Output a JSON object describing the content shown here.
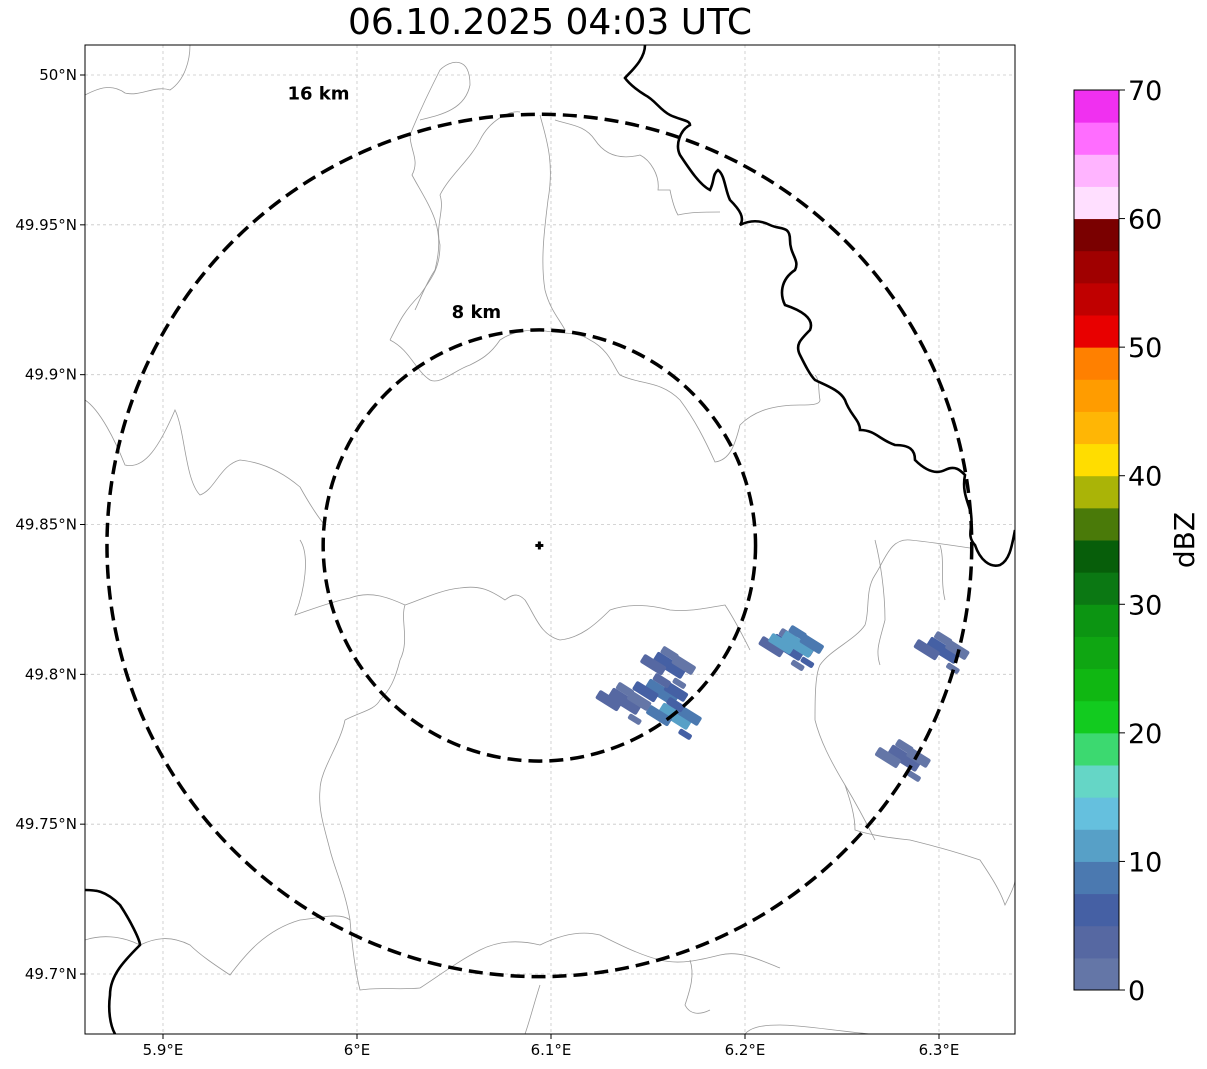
{
  "title": "06.10.2025 04:03 UTC",
  "map": {
    "lon_range": [
      5.86,
      6.34
    ],
    "lat_range": [
      49.68,
      50.01
    ],
    "lon_ticks": [
      {
        "value": 5.9,
        "label": "5.9°E"
      },
      {
        "value": 6.0,
        "label": "6°E"
      },
      {
        "value": 6.1,
        "label": "6.1°E"
      },
      {
        "value": 6.2,
        "label": "6.2°E"
      },
      {
        "value": 6.3,
        "label": "6.3°E"
      }
    ],
    "lat_ticks": [
      {
        "value": 49.7,
        "label": "49.7°N"
      },
      {
        "value": 49.75,
        "label": "49.75°N"
      },
      {
        "value": 49.8,
        "label": "49.8°N"
      },
      {
        "value": 49.85,
        "label": "49.85°N"
      },
      {
        "value": 49.9,
        "label": "49.9°N"
      },
      {
        "value": 49.95,
        "label": "49.95°N"
      },
      {
        "value": 50.0,
        "label": "50°N"
      }
    ],
    "grid": true,
    "radar_site": {
      "lon": 6.094,
      "lat": 49.843
    },
    "range_rings": [
      {
        "km": 8,
        "label": "8 km"
      },
      {
        "km": 16,
        "label": "16 km"
      }
    ],
    "ring_style": "black dashed"
  },
  "colorbar": {
    "label": "dBZ",
    "min": 0,
    "max": 70,
    "step": 2.5,
    "tick_values": [
      0,
      10,
      20,
      30,
      40,
      50,
      60,
      70
    ],
    "tick_labels": [
      "0",
      "10",
      "20",
      "30",
      "40",
      "50",
      "60",
      "70"
    ],
    "colors": [
      "#6476a7",
      "#5668a2",
      "#4560a4",
      "#4b79b0",
      "#57a0c7",
      "#65c0de",
      "#65d6c6",
      "#3cd970",
      "#12cb1f",
      "#10b712",
      "#0fa612",
      "#0c9512",
      "#0b7813",
      "#075e0a",
      "#4a7a09",
      "#aab407",
      "#ffdd00",
      "#ffb605",
      "#ff9c00",
      "#ff8000",
      "#e80000",
      "#c00000",
      "#a00000",
      "#7a0000",
      "#ffdfff",
      "#ffb4ff",
      "#ff6dff",
      "#f030f0"
    ]
  },
  "echo_cells": [
    {
      "lon": 6.157,
      "lat": 49.794,
      "dbz": 8
    },
    {
      "lon": 6.164,
      "lat": 49.786,
      "dbz": 11
    },
    {
      "lon": 6.138,
      "lat": 49.791,
      "dbz": 4
    },
    {
      "lon": 6.161,
      "lat": 49.803,
      "dbz": 5
    },
    {
      "lon": 6.222,
      "lat": 49.809,
      "dbz": 6
    },
    {
      "lon": 6.227,
      "lat": 49.81,
      "dbz": 12
    },
    {
      "lon": 6.302,
      "lat": 49.808,
      "dbz": 5
    },
    {
      "lon": 6.282,
      "lat": 49.772,
      "dbz": 3
    }
  ]
}
